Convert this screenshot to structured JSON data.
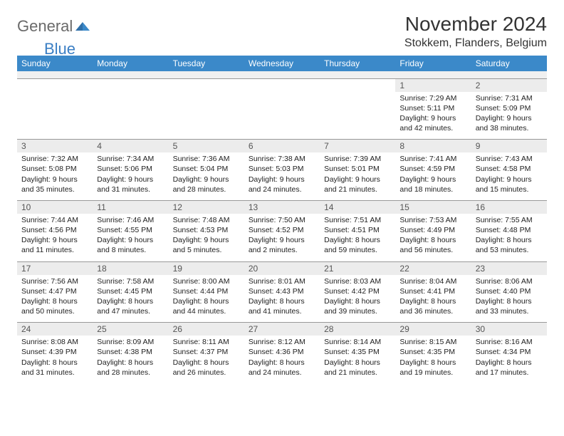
{
  "logo": {
    "text1": "General",
    "text2": "Blue"
  },
  "title": "November 2024",
  "location": "Stokkem, Flanders, Belgium",
  "colors": {
    "header_bg": "#3b89c9",
    "header_fg": "#ffffff",
    "daynum_bg": "#ececec",
    "border": "#999999",
    "logo_gray": "#6a6a6a",
    "logo_blue": "#3b7fc4"
  },
  "dow": [
    "Sunday",
    "Monday",
    "Tuesday",
    "Wednesday",
    "Thursday",
    "Friday",
    "Saturday"
  ],
  "weeks": [
    [
      null,
      null,
      null,
      null,
      null,
      {
        "n": "1",
        "sr": "7:29 AM",
        "ss": "5:11 PM",
        "dl": "9 hours and 42 minutes."
      },
      {
        "n": "2",
        "sr": "7:31 AM",
        "ss": "5:09 PM",
        "dl": "9 hours and 38 minutes."
      }
    ],
    [
      {
        "n": "3",
        "sr": "7:32 AM",
        "ss": "5:08 PM",
        "dl": "9 hours and 35 minutes."
      },
      {
        "n": "4",
        "sr": "7:34 AM",
        "ss": "5:06 PM",
        "dl": "9 hours and 31 minutes."
      },
      {
        "n": "5",
        "sr": "7:36 AM",
        "ss": "5:04 PM",
        "dl": "9 hours and 28 minutes."
      },
      {
        "n": "6",
        "sr": "7:38 AM",
        "ss": "5:03 PM",
        "dl": "9 hours and 24 minutes."
      },
      {
        "n": "7",
        "sr": "7:39 AM",
        "ss": "5:01 PM",
        "dl": "9 hours and 21 minutes."
      },
      {
        "n": "8",
        "sr": "7:41 AM",
        "ss": "4:59 PM",
        "dl": "9 hours and 18 minutes."
      },
      {
        "n": "9",
        "sr": "7:43 AM",
        "ss": "4:58 PM",
        "dl": "9 hours and 15 minutes."
      }
    ],
    [
      {
        "n": "10",
        "sr": "7:44 AM",
        "ss": "4:56 PM",
        "dl": "9 hours and 11 minutes."
      },
      {
        "n": "11",
        "sr": "7:46 AM",
        "ss": "4:55 PM",
        "dl": "9 hours and 8 minutes."
      },
      {
        "n": "12",
        "sr": "7:48 AM",
        "ss": "4:53 PM",
        "dl": "9 hours and 5 minutes."
      },
      {
        "n": "13",
        "sr": "7:50 AM",
        "ss": "4:52 PM",
        "dl": "9 hours and 2 minutes."
      },
      {
        "n": "14",
        "sr": "7:51 AM",
        "ss": "4:51 PM",
        "dl": "8 hours and 59 minutes."
      },
      {
        "n": "15",
        "sr": "7:53 AM",
        "ss": "4:49 PM",
        "dl": "8 hours and 56 minutes."
      },
      {
        "n": "16",
        "sr": "7:55 AM",
        "ss": "4:48 PM",
        "dl": "8 hours and 53 minutes."
      }
    ],
    [
      {
        "n": "17",
        "sr": "7:56 AM",
        "ss": "4:47 PM",
        "dl": "8 hours and 50 minutes."
      },
      {
        "n": "18",
        "sr": "7:58 AM",
        "ss": "4:45 PM",
        "dl": "8 hours and 47 minutes."
      },
      {
        "n": "19",
        "sr": "8:00 AM",
        "ss": "4:44 PM",
        "dl": "8 hours and 44 minutes."
      },
      {
        "n": "20",
        "sr": "8:01 AM",
        "ss": "4:43 PM",
        "dl": "8 hours and 41 minutes."
      },
      {
        "n": "21",
        "sr": "8:03 AM",
        "ss": "4:42 PM",
        "dl": "8 hours and 39 minutes."
      },
      {
        "n": "22",
        "sr": "8:04 AM",
        "ss": "4:41 PM",
        "dl": "8 hours and 36 minutes."
      },
      {
        "n": "23",
        "sr": "8:06 AM",
        "ss": "4:40 PM",
        "dl": "8 hours and 33 minutes."
      }
    ],
    [
      {
        "n": "24",
        "sr": "8:08 AM",
        "ss": "4:39 PM",
        "dl": "8 hours and 31 minutes."
      },
      {
        "n": "25",
        "sr": "8:09 AM",
        "ss": "4:38 PM",
        "dl": "8 hours and 28 minutes."
      },
      {
        "n": "26",
        "sr": "8:11 AM",
        "ss": "4:37 PM",
        "dl": "8 hours and 26 minutes."
      },
      {
        "n": "27",
        "sr": "8:12 AM",
        "ss": "4:36 PM",
        "dl": "8 hours and 24 minutes."
      },
      {
        "n": "28",
        "sr": "8:14 AM",
        "ss": "4:35 PM",
        "dl": "8 hours and 21 minutes."
      },
      {
        "n": "29",
        "sr": "8:15 AM",
        "ss": "4:35 PM",
        "dl": "8 hours and 19 minutes."
      },
      {
        "n": "30",
        "sr": "8:16 AM",
        "ss": "4:34 PM",
        "dl": "8 hours and 17 minutes."
      }
    ]
  ],
  "labels": {
    "sunrise": "Sunrise: ",
    "sunset": "Sunset: ",
    "daylight": "Daylight: "
  }
}
